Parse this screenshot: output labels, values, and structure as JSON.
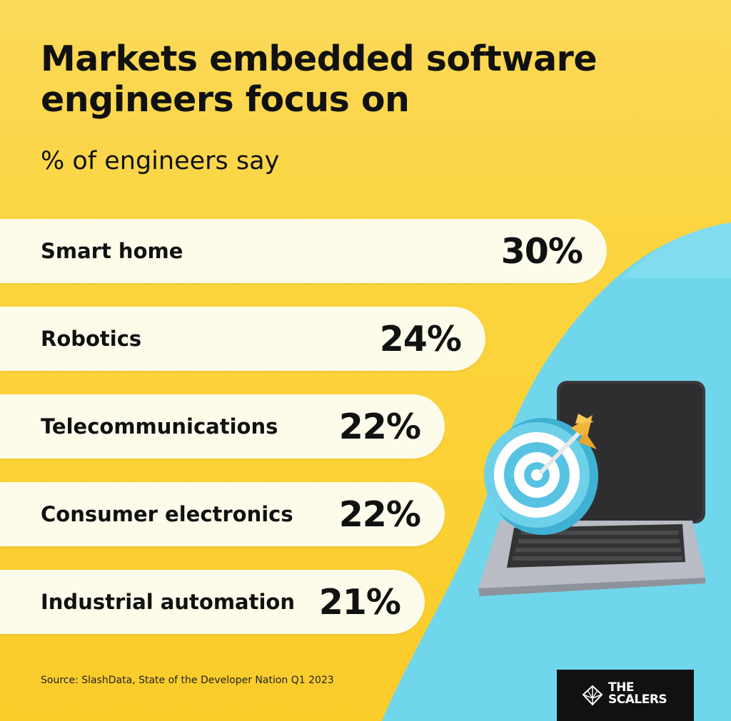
{
  "title_line1": "Markets embedded software",
  "title_line2": "engineers focus on",
  "subtitle": "% of engineers say",
  "source": "Source: SlashData, State of the Developer Nation Q1 2023",
  "logo": {
    "line1": "THE",
    "line2": "SCALERS"
  },
  "colors": {
    "background": "#fbd53f",
    "bar": "#fdfbea",
    "accent_cyan": "#6fd6ec",
    "text": "#111111"
  },
  "chart_data": {
    "type": "bar",
    "orientation": "horizontal",
    "title": "Markets embedded software engineers focus on",
    "subtitle": "% of engineers say",
    "categories": [
      "Smart home",
      "Robotics",
      "Telecommunications",
      "Consumer electronics",
      "Industrial automation"
    ],
    "values": [
      30,
      24,
      22,
      22,
      21
    ],
    "value_labels": [
      "30%",
      "24%",
      "22%",
      "22%",
      "21%"
    ],
    "unit": "%"
  }
}
